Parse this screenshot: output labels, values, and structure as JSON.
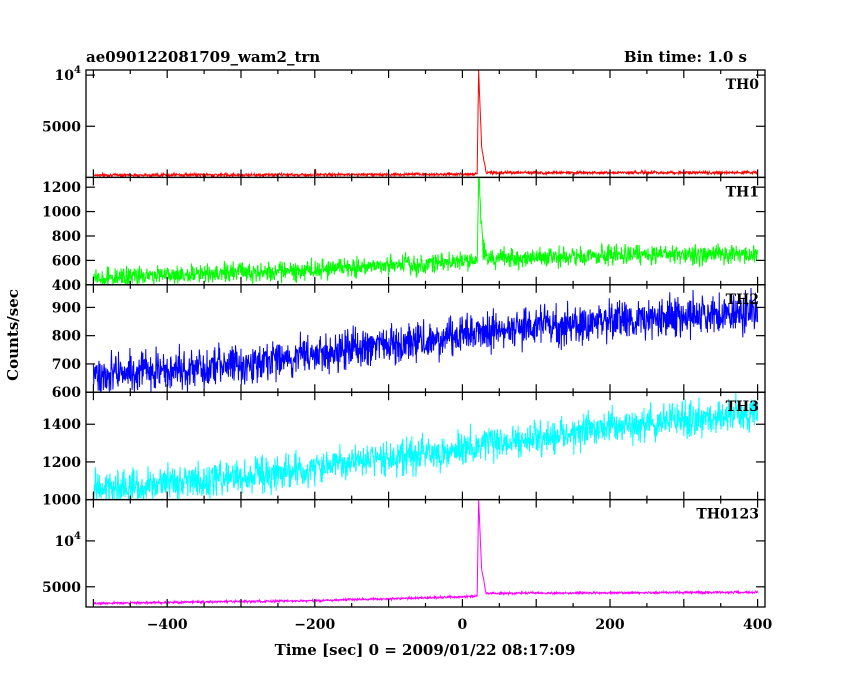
{
  "chart_data": {
    "type": "line",
    "title_left": "ae090122081709_wam2_trn",
    "title_right": "Bin time: 1.0 s",
    "xlabel": "Time [sec] 0 = 2009/01/22 08:17:09",
    "ylabel": "Counts/sec",
    "xlim": [
      -510,
      410
    ],
    "x_ticks": [
      -400,
      -200,
      0,
      200,
      400
    ],
    "x_tick_labels": [
      "−400",
      "−200",
      "0",
      "200",
      "400"
    ],
    "grid": false,
    "bin_time_s": 1.0,
    "panels": [
      {
        "name": "TH0",
        "color": "#ff0000",
        "ylim": [
          0,
          10500
        ],
        "y_ticks": [
          5000,
          10000
        ],
        "y_tick_labels": [
          "5000",
          "10^4"
        ],
        "series": {
          "noise": 70,
          "points": [
            [
              -500,
              230
            ],
            [
              -200,
              260
            ],
            [
              -199,
              700
            ],
            [
              -198,
              260
            ],
            [
              0,
              310
            ],
            [
              20,
              330
            ],
            [
              22,
              10500
            ],
            [
              26,
              3000
            ],
            [
              32,
              460
            ],
            [
              400,
              470
            ]
          ]
        }
      },
      {
        "name": "TH1",
        "color": "#00ff00",
        "ylim": [
          400,
          1280
        ],
        "y_ticks": [
          400,
          600,
          800,
          1000,
          1200
        ],
        "y_tick_labels": [
          "400",
          "600",
          "800",
          "1000",
          "1200"
        ],
        "series": {
          "noise": 40,
          "points": [
            [
              -500,
              450
            ],
            [
              -300,
              500
            ],
            [
              -100,
              550
            ],
            [
              0,
              590
            ],
            [
              20,
              600
            ],
            [
              22,
              1280
            ],
            [
              28,
              700
            ],
            [
              34,
              610
            ],
            [
              200,
              640
            ],
            [
              400,
              650
            ]
          ]
        }
      },
      {
        "name": "TH2",
        "color": "#0000ff",
        "ylim": [
          600,
          980
        ],
        "y_ticks": [
          600,
          700,
          800,
          900
        ],
        "y_tick_labels": [
          "600",
          "700",
          "800",
          "900"
        ],
        "series": {
          "noise": 35,
          "points": [
            [
              -500,
              660
            ],
            [
              -300,
              700
            ],
            [
              -100,
              770
            ],
            [
              100,
              830
            ],
            [
              300,
              870
            ],
            [
              400,
              880
            ]
          ]
        }
      },
      {
        "name": "TH3",
        "color": "#00ffff",
        "ylim": [
          1000,
          1570
        ],
        "y_ticks": [
          1000,
          1200,
          1400
        ],
        "y_tick_labels": [
          "1000",
          "1200",
          "1400"
        ],
        "series": {
          "noise": 45,
          "points": [
            [
              -500,
              1050
            ],
            [
              -300,
              1120
            ],
            [
              -100,
              1220
            ],
            [
              100,
              1330
            ],
            [
              300,
              1430
            ],
            [
              400,
              1460
            ]
          ]
        }
      },
      {
        "name": "TH0123",
        "color": "#ff00ff",
        "ylim": [
          2800,
          14500
        ],
        "y_ticks": [
          5000,
          10000
        ],
        "y_tick_labels": [
          "5000",
          "10^4"
        ],
        "series": {
          "noise": 60,
          "points": [
            [
              -500,
              3200
            ],
            [
              -200,
              3500
            ],
            [
              0,
              3900
            ],
            [
              20,
              4000
            ],
            [
              22,
              14500
            ],
            [
              26,
              7000
            ],
            [
              32,
              4300
            ],
            [
              400,
              4400
            ]
          ]
        }
      }
    ]
  }
}
